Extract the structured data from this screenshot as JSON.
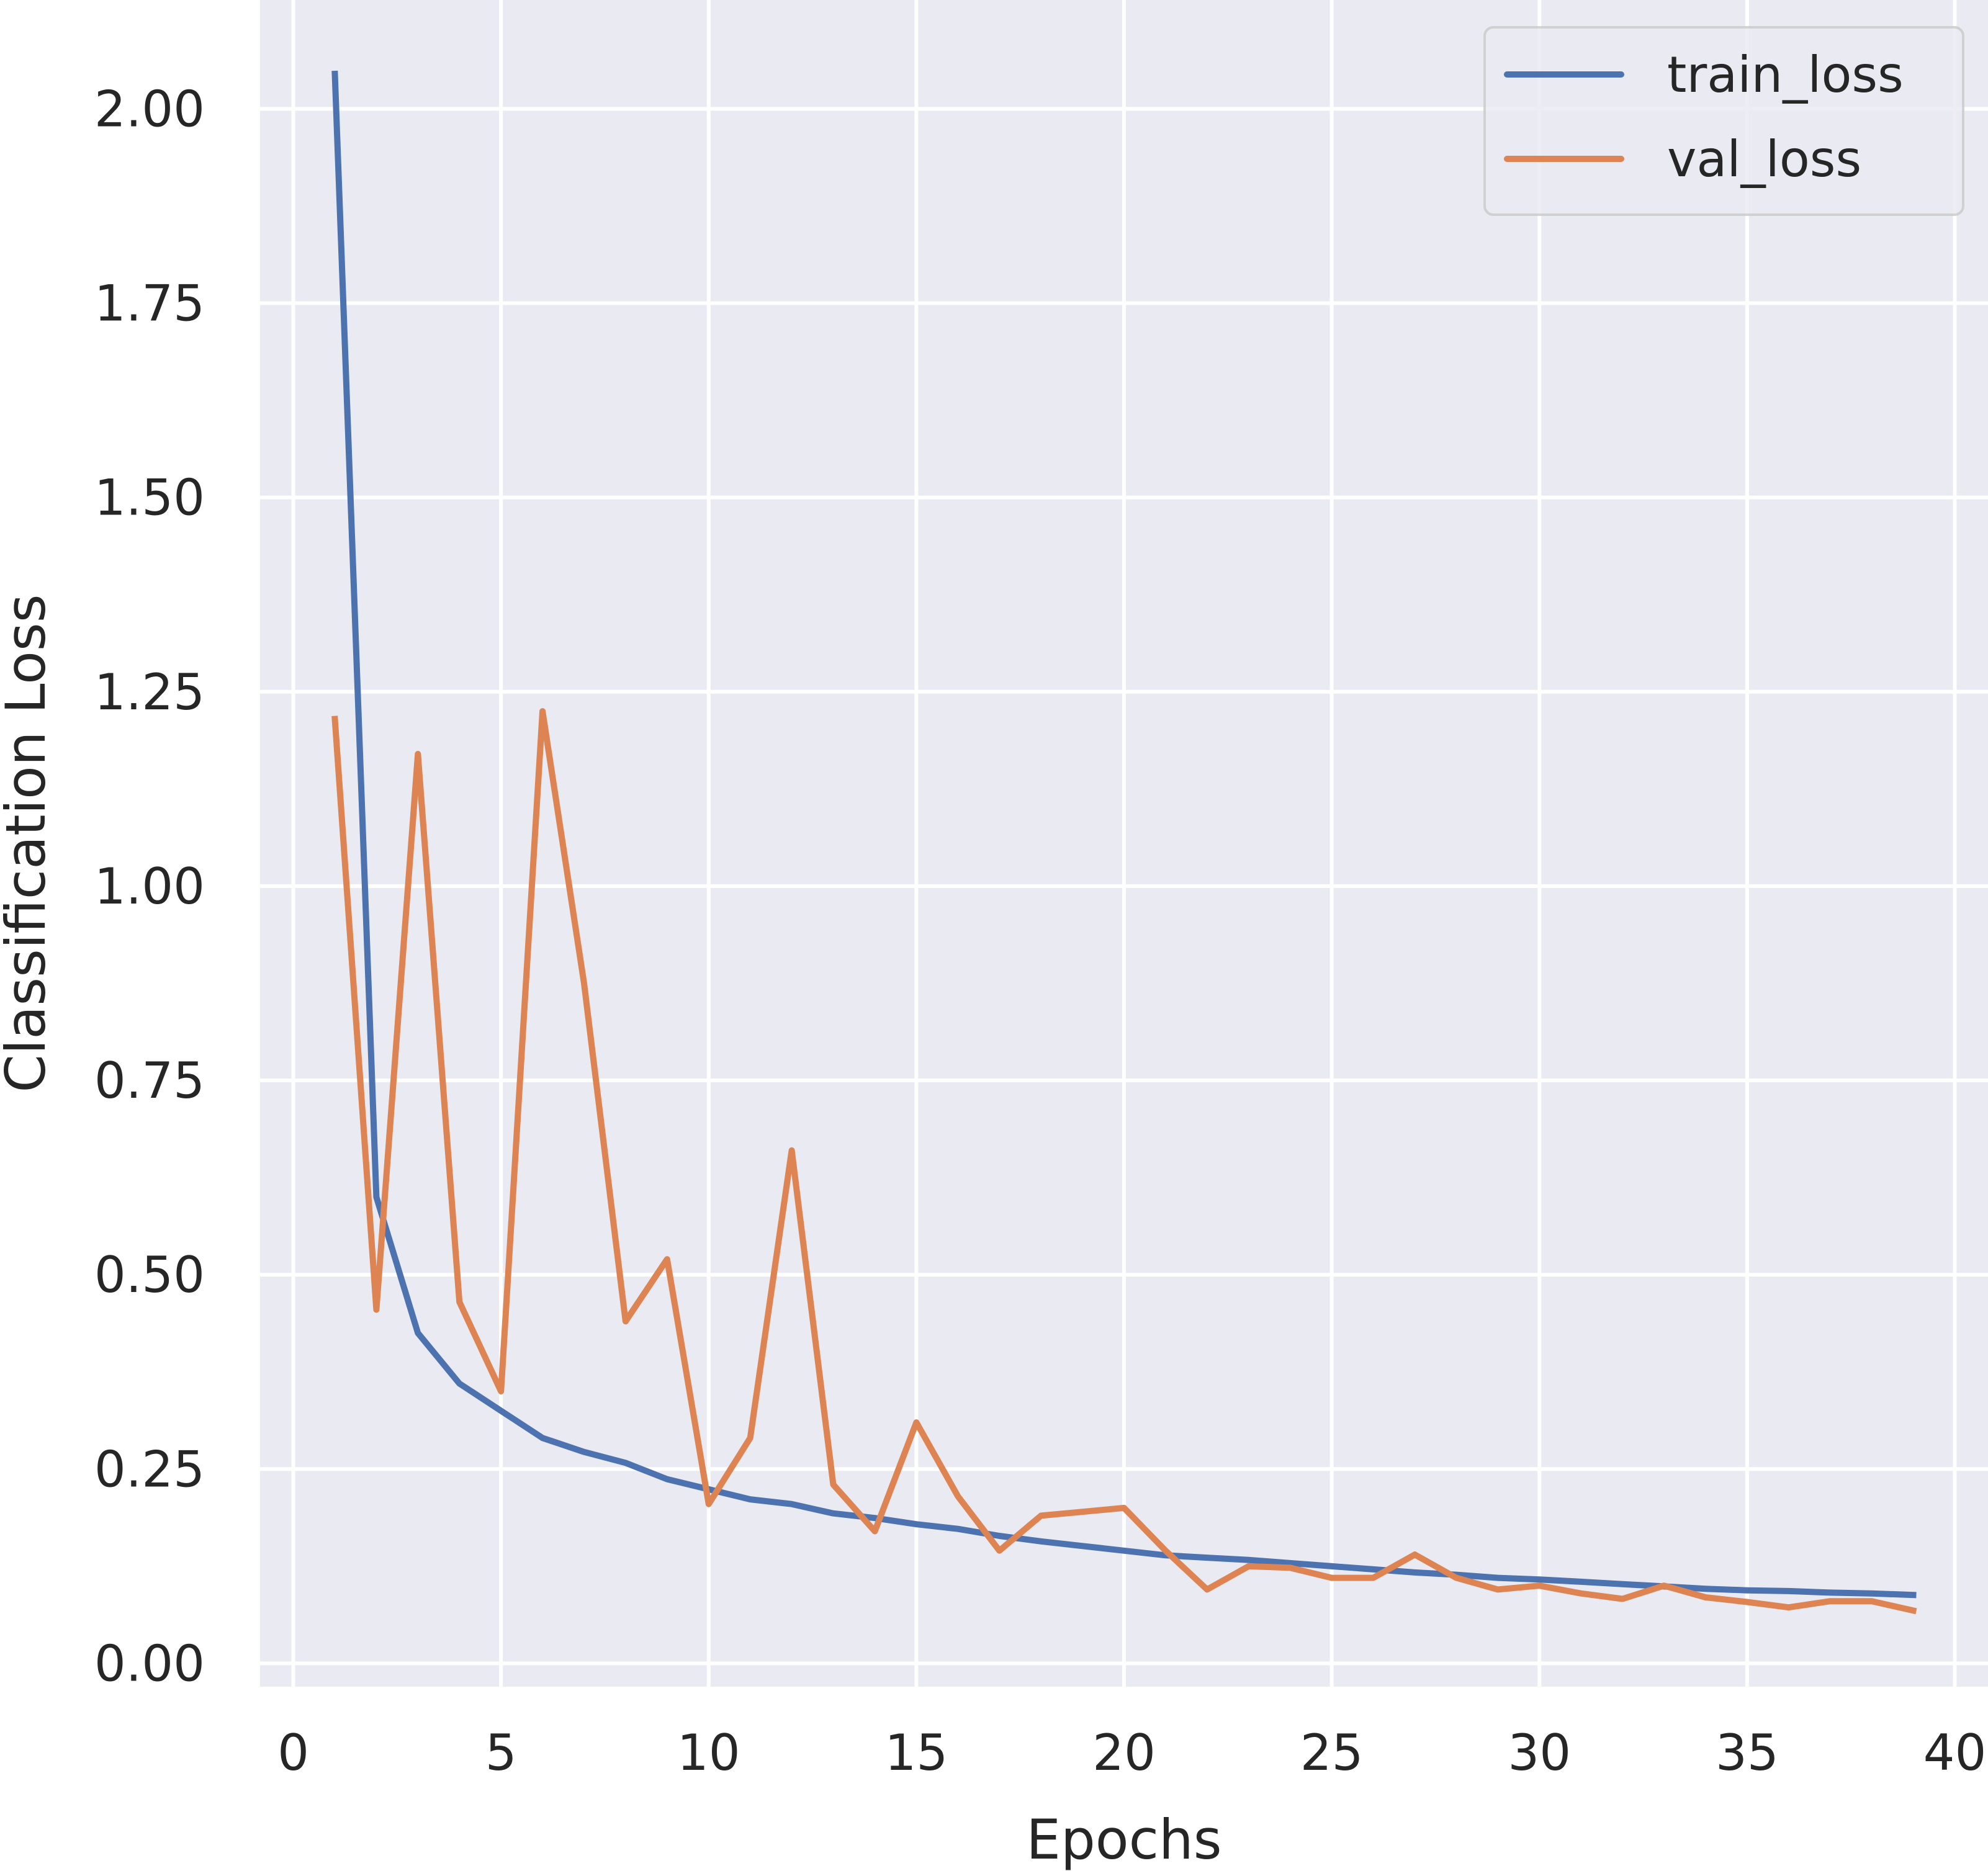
{
  "chart_data": {
    "type": "line",
    "xlabel": "Epochs",
    "ylabel": "Classification Loss",
    "xlim": [
      -0.8,
      40.8
    ],
    "ylim": [
      -0.03,
      2.14
    ],
    "xticks": [
      0,
      5,
      10,
      15,
      20,
      25,
      30,
      35,
      40
    ],
    "yticks": [
      0.0,
      0.25,
      0.5,
      0.75,
      1.0,
      1.25,
      1.5,
      1.75,
      2.0
    ],
    "ytick_labels": [
      "0.00",
      "0.25",
      "0.50",
      "0.75",
      "1.00",
      "1.25",
      "1.50",
      "1.75",
      "2.00"
    ],
    "grid": true,
    "legend_position": "top-right",
    "background": "#eaeaf2",
    "x": [
      1,
      2,
      3,
      4,
      5,
      6,
      7,
      8,
      9,
      10,
      11,
      12,
      13,
      14,
      15,
      16,
      17,
      18,
      19,
      20,
      21,
      22,
      23,
      24,
      25,
      26,
      27,
      28,
      29,
      30,
      31,
      32,
      33,
      34,
      35,
      36,
      37,
      38,
      39
    ],
    "series": [
      {
        "name": "train_loss",
        "color": "#4c72b0",
        "values": [
          2.045,
          0.6,
          0.425,
          0.36,
          0.325,
          0.29,
          0.272,
          0.258,
          0.237,
          0.224,
          0.211,
          0.205,
          0.193,
          0.187,
          0.179,
          0.173,
          0.164,
          0.157,
          0.151,
          0.145,
          0.139,
          0.136,
          0.133,
          0.129,
          0.125,
          0.121,
          0.117,
          0.114,
          0.11,
          0.108,
          0.105,
          0.102,
          0.099,
          0.096,
          0.094,
          0.093,
          0.091,
          0.09,
          0.088
        ]
      },
      {
        "name": "val_loss",
        "color": "#dd8452",
        "values": [
          1.215,
          0.455,
          1.17,
          0.465,
          0.35,
          1.225,
          0.875,
          0.44,
          0.52,
          0.205,
          0.29,
          0.66,
          0.23,
          0.17,
          0.31,
          0.215,
          0.145,
          0.19,
          0.195,
          0.2,
          0.145,
          0.095,
          0.125,
          0.123,
          0.11,
          0.11,
          0.14,
          0.11,
          0.095,
          0.1,
          0.09,
          0.083,
          0.1,
          0.085,
          0.079,
          0.072,
          0.08,
          0.08,
          0.068
        ]
      }
    ]
  }
}
